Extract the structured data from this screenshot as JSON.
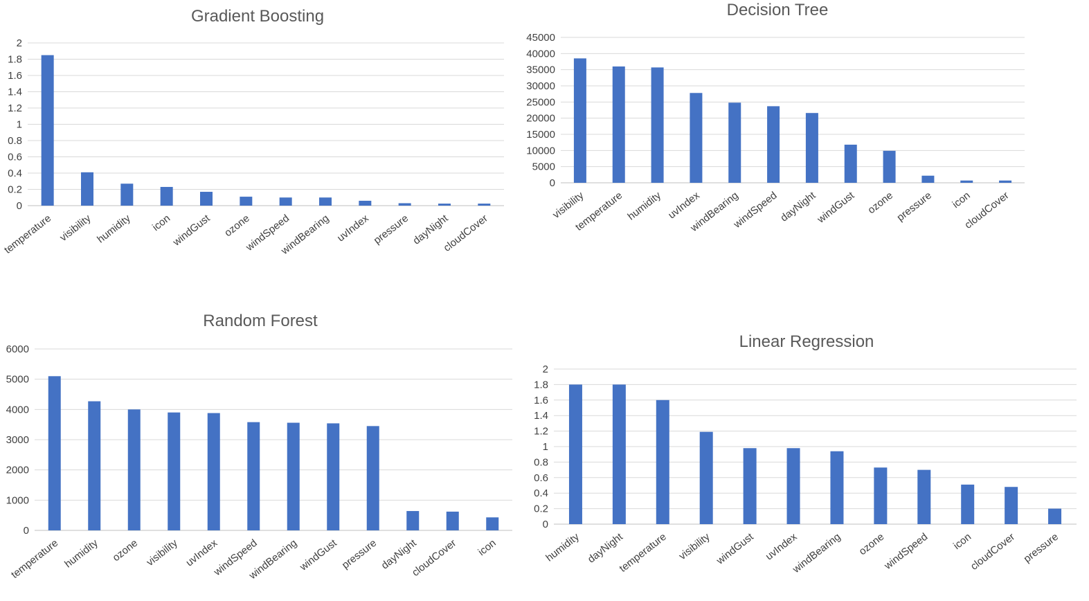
{
  "chart_data": [
    {
      "type": "bar",
      "title": "Gradient Boosting",
      "categories": [
        "temperature",
        "visibility",
        "humidity",
        "icon",
        "windGust",
        "ozone",
        "windSpeed",
        "windBearing",
        "uvIndex",
        "pressure",
        "dayNight",
        "cloudCover"
      ],
      "values": [
        1.85,
        0.41,
        0.27,
        0.23,
        0.17,
        0.11,
        0.1,
        0.1,
        0.06,
        0.03,
        0.025,
        0.025
      ],
      "ylim": [
        0,
        2
      ],
      "yticks": [
        "0",
        "0.2",
        "0.4",
        "0.6",
        "0.8",
        "1",
        "1.2",
        "1.4",
        "1.6",
        "1.8",
        "2"
      ],
      "color": "#4472C4",
      "grid": true
    },
    {
      "type": "bar",
      "title": "Decision Tree",
      "categories": [
        "visibility",
        "temperature",
        "humidity",
        "uvIndex",
        "windBearing",
        "windSpeed",
        "dayNight",
        "windGust",
        "ozone",
        "pressure",
        "icon",
        "cloudCover"
      ],
      "values": [
        38500,
        36000,
        35700,
        27800,
        24800,
        23700,
        21600,
        11800,
        9900,
        2200,
        700,
        700
      ],
      "ylim": [
        0,
        45000
      ],
      "yticks": [
        "0",
        "5000",
        "10000",
        "15000",
        "20000",
        "25000",
        "30000",
        "35000",
        "40000",
        "45000"
      ],
      "color": "#4472C4",
      "grid": true
    },
    {
      "type": "bar",
      "title": "Random Forest",
      "categories": [
        "temperature",
        "humidity",
        "ozone",
        "visibility",
        "uvIndex",
        "windSpeed",
        "windBearing",
        "windGust",
        "pressure",
        "dayNight",
        "cloudCover",
        "icon"
      ],
      "values": [
        5100,
        4270,
        4000,
        3900,
        3880,
        3580,
        3560,
        3540,
        3450,
        640,
        620,
        430
      ],
      "ylim": [
        0,
        6000
      ],
      "yticks": [
        "0",
        "1000",
        "2000",
        "3000",
        "4000",
        "5000",
        "6000"
      ],
      "color": "#4472C4",
      "grid": true
    },
    {
      "type": "bar",
      "title": "Linear Regression",
      "categories": [
        "humidity",
        "dayNight",
        "temperature",
        "visibility",
        "windGust",
        "uvIndex",
        "windBearing",
        "ozone",
        "windSpeed",
        "icon",
        "cloudCover",
        "pressure"
      ],
      "values": [
        1.8,
        1.8,
        1.6,
        1.19,
        0.98,
        0.98,
        0.94,
        0.73,
        0.7,
        0.51,
        0.48,
        0.2
      ],
      "ylim": [
        0,
        2
      ],
      "yticks": [
        "0",
        "0.2",
        "0.4",
        "0.6",
        "0.8",
        "1",
        "1.2",
        "1.4",
        "1.6",
        "1.8",
        "2"
      ],
      "color": "#4472C4",
      "grid": true
    }
  ]
}
